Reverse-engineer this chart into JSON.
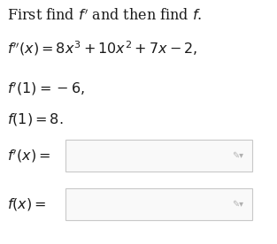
{
  "title_line": "First find $f'$ and then find $f$.",
  "line1": "$f''(x) = 8x^3 + 10x^2 + 7x - 2,$",
  "line2": "$f'(1) = -6,$",
  "line3": "$f(1) = 8.$",
  "label1": "$f'(x) =$",
  "label2": "$f(x) =$",
  "bg_color": "#ffffff",
  "text_color": "#1a1a1a",
  "box_facecolor": "#f9f9f9",
  "box_edgecolor": "#c8c8c8",
  "pencil_color": "#b0b0b0",
  "title_fontsize": 11.5,
  "body_fontsize": 11.5,
  "fig_width": 3.13,
  "fig_height": 2.76,
  "dpi": 100
}
